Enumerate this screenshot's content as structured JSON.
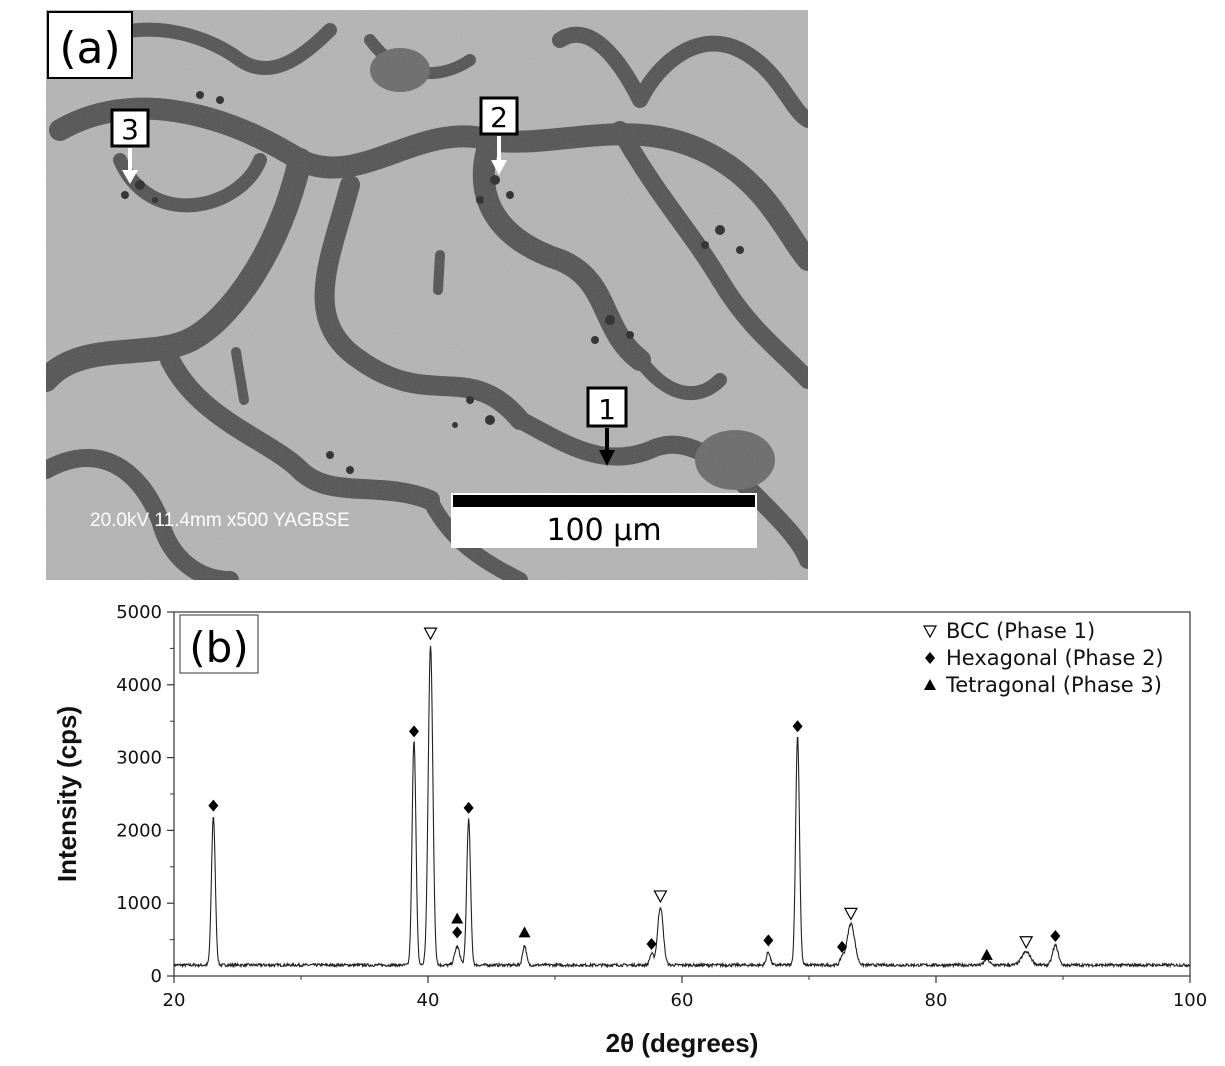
{
  "panel_a": {
    "label": "(a)",
    "markers": [
      {
        "label": "1",
        "arrow": "black"
      },
      {
        "label": "2",
        "arrow": "white"
      },
      {
        "label": "3",
        "arrow": "white"
      }
    ],
    "info": "20.0kV 11.4mm x500 YAGBSE",
    "scale_bar": "100 μm"
  },
  "chart_data": {
    "type": "line",
    "panel_label": "(b)",
    "xlabel": "2θ (degrees)",
    "ylabel": "Intensity (cps)",
    "xlim": [
      20,
      100
    ],
    "ylim": [
      0,
      5000
    ],
    "xticks": [
      20,
      40,
      60,
      80,
      100
    ],
    "yticks": [
      0,
      1000,
      2000,
      3000,
      4000,
      5000
    ],
    "baseline": 150,
    "peaks": [
      {
        "x": 23.1,
        "y": 2200,
        "w": 0.15
      },
      {
        "x": 38.9,
        "y": 3250,
        "w": 0.15
      },
      {
        "x": 40.2,
        "y": 4550,
        "w": 0.18
      },
      {
        "x": 42.3,
        "y": 400,
        "w": 0.2
      },
      {
        "x": 43.2,
        "y": 2150,
        "w": 0.15
      },
      {
        "x": 47.6,
        "y": 420,
        "w": 0.15
      },
      {
        "x": 57.6,
        "y": 300,
        "w": 0.15
      },
      {
        "x": 58.3,
        "y": 950,
        "w": 0.22
      },
      {
        "x": 66.8,
        "y": 330,
        "w": 0.15
      },
      {
        "x": 69.1,
        "y": 3300,
        "w": 0.15
      },
      {
        "x": 72.6,
        "y": 250,
        "w": 0.15
      },
      {
        "x": 73.3,
        "y": 720,
        "w": 0.3
      },
      {
        "x": 84.0,
        "y": 230,
        "w": 0.2
      },
      {
        "x": 87.1,
        "y": 330,
        "w": 0.35
      },
      {
        "x": 89.4,
        "y": 420,
        "w": 0.22
      }
    ],
    "series_markers": [
      {
        "x": 23.1,
        "y": 2340,
        "phase": "hex"
      },
      {
        "x": 38.9,
        "y": 3360,
        "phase": "hex"
      },
      {
        "x": 40.2,
        "y": 4710,
        "phase": "bcc"
      },
      {
        "x": 42.3,
        "y": 790,
        "phase": "tet"
      },
      {
        "x": 42.3,
        "y": 600,
        "phase": "hex"
      },
      {
        "x": 43.2,
        "y": 2310,
        "phase": "hex"
      },
      {
        "x": 47.6,
        "y": 600,
        "phase": "tet"
      },
      {
        "x": 57.6,
        "y": 440,
        "phase": "hex"
      },
      {
        "x": 58.3,
        "y": 1100,
        "phase": "bcc"
      },
      {
        "x": 66.8,
        "y": 490,
        "phase": "hex"
      },
      {
        "x": 69.1,
        "y": 3430,
        "phase": "hex"
      },
      {
        "x": 72.6,
        "y": 400,
        "phase": "hex"
      },
      {
        "x": 73.3,
        "y": 860,
        "phase": "bcc"
      },
      {
        "x": 84.0,
        "y": 290,
        "phase": "tet"
      },
      {
        "x": 87.1,
        "y": 470,
        "phase": "bcc"
      },
      {
        "x": 89.4,
        "y": 550,
        "phase": "hex"
      }
    ],
    "legend": [
      {
        "key": "bcc",
        "label": "BCC (Phase 1)"
      },
      {
        "key": "hex",
        "label": "Hexagonal (Phase 2)"
      },
      {
        "key": "tet",
        "label": "Tetragonal (Phase 3)"
      }
    ],
    "legend_position": "top-right",
    "grid": false,
    "colors": {
      "line": "#222222",
      "marker": "#000000"
    }
  }
}
